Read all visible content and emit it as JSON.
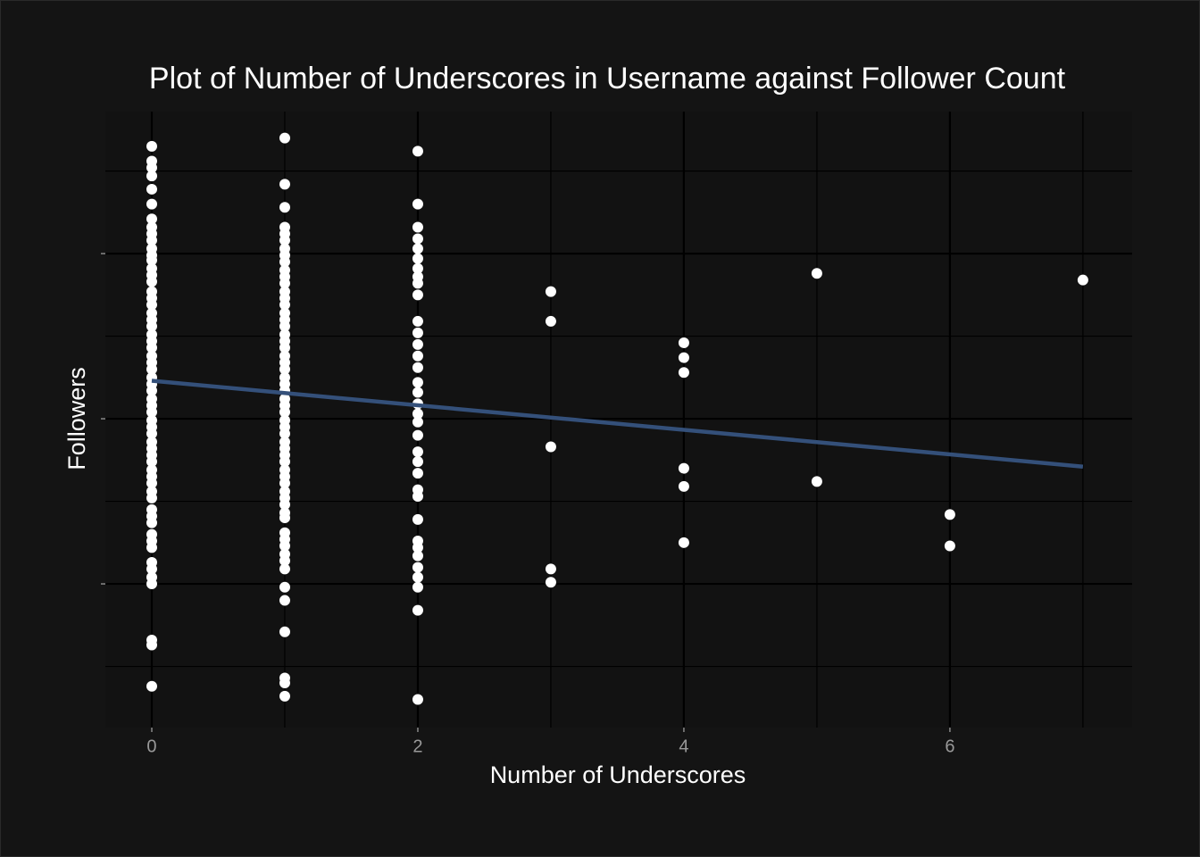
{
  "chart_data": {
    "type": "scatter",
    "title": "Plot of Number of Underscores in Username against Follower Count",
    "xlabel": "Number of Underscores",
    "ylabel": "Followers",
    "x": [
      0,
      0,
      0,
      0,
      0,
      0,
      0,
      0,
      0,
      0,
      0,
      0,
      0,
      0,
      0,
      0,
      0,
      0,
      0,
      0,
      0,
      0,
      0,
      0,
      0,
      0,
      0,
      0,
      0,
      0,
      0,
      0,
      0,
      0,
      0,
      0,
      0,
      0,
      0,
      0,
      0,
      0,
      0,
      0,
      0,
      0,
      0,
      0,
      0,
      0,
      0,
      0,
      0,
      0,
      0,
      0,
      0,
      0,
      0,
      1,
      1,
      1,
      1,
      1,
      1,
      1,
      1,
      1,
      1,
      1,
      1,
      1,
      1,
      1,
      1,
      1,
      1,
      1,
      1,
      1,
      1,
      1,
      1,
      1,
      1,
      1,
      1,
      1,
      1,
      1,
      1,
      1,
      1,
      1,
      1,
      1,
      1,
      1,
      1,
      1,
      1,
      1,
      1,
      1,
      1,
      1,
      1,
      1,
      1,
      1,
      1,
      1,
      1,
      1,
      1,
      1,
      2,
      2,
      2,
      2,
      2,
      2,
      2,
      2,
      2,
      2,
      2,
      2,
      2,
      2,
      2,
      2,
      2,
      2,
      2,
      2,
      2,
      2,
      2,
      2,
      2,
      2,
      2,
      2,
      2,
      2,
      2,
      2,
      2,
      2,
      2,
      3,
      3,
      3,
      3,
      3,
      4,
      4,
      4,
      4,
      4,
      4,
      5,
      5,
      6,
      6,
      7
    ],
    "values": [
      3.65,
      3.56,
      3.52,
      3.47,
      3.39,
      3.3,
      3.21,
      3.16,
      3.12,
      3.08,
      3.03,
      2.99,
      2.96,
      2.91,
      2.87,
      2.83,
      2.77,
      2.73,
      2.69,
      2.64,
      2.6,
      2.56,
      2.51,
      2.47,
      2.43,
      2.38,
      2.34,
      2.3,
      2.25,
      2.21,
      2.17,
      2.12,
      2.08,
      2.04,
      1.99,
      1.95,
      1.91,
      1.86,
      1.82,
      1.78,
      1.74,
      1.69,
      1.65,
      1.61,
      1.56,
      1.52,
      1.45,
      1.41,
      1.37,
      1.3,
      1.26,
      1.22,
      1.13,
      1.09,
      1.04,
      1.0,
      0.66,
      0.63,
      0.38,
      3.7,
      3.42,
      3.28,
      3.16,
      3.12,
      3.08,
      3.03,
      2.99,
      2.95,
      2.9,
      2.86,
      2.82,
      2.77,
      2.73,
      2.69,
      2.64,
      2.6,
      2.56,
      2.51,
      2.47,
      2.43,
      2.38,
      2.34,
      2.3,
      2.25,
      2.21,
      2.17,
      2.12,
      2.08,
      2.04,
      1.99,
      1.95,
      1.91,
      1.86,
      1.82,
      1.78,
      1.74,
      1.69,
      1.65,
      1.61,
      1.56,
      1.52,
      1.48,
      1.43,
      1.4,
      1.31,
      1.27,
      1.23,
      1.18,
      1.14,
      1.09,
      0.98,
      0.9,
      0.71,
      0.43,
      0.4,
      0.32,
      3.62,
      3.3,
      3.16,
      3.09,
      3.03,
      2.97,
      2.91,
      2.86,
      2.82,
      2.75,
      2.59,
      2.52,
      2.45,
      2.38,
      2.31,
      2.22,
      2.16,
      2.09,
      2.03,
      1.98,
      1.9,
      1.8,
      1.74,
      1.67,
      1.57,
      1.53,
      1.39,
      1.26,
      1.22,
      1.17,
      1.1,
      1.04,
      0.98,
      0.84,
      0.3,
      2.77,
      2.59,
      1.83,
      1.09,
      1.01,
      2.46,
      2.37,
      2.28,
      1.7,
      1.59,
      1.25,
      2.88,
      1.62,
      1.42,
      1.23,
      2.84
    ],
    "color": "#ffffff",
    "trend": {
      "x": [
        0,
        7
      ],
      "values": [
        2.23,
        1.71
      ],
      "color": "#34507a"
    },
    "xlim": [
      -0.349,
      7.37
    ],
    "ylim": [
      0.13,
      3.86
    ],
    "xticks": [
      0,
      2,
      4,
      6
    ],
    "yticks": [
      1,
      2,
      3
    ],
    "grid": true
  }
}
